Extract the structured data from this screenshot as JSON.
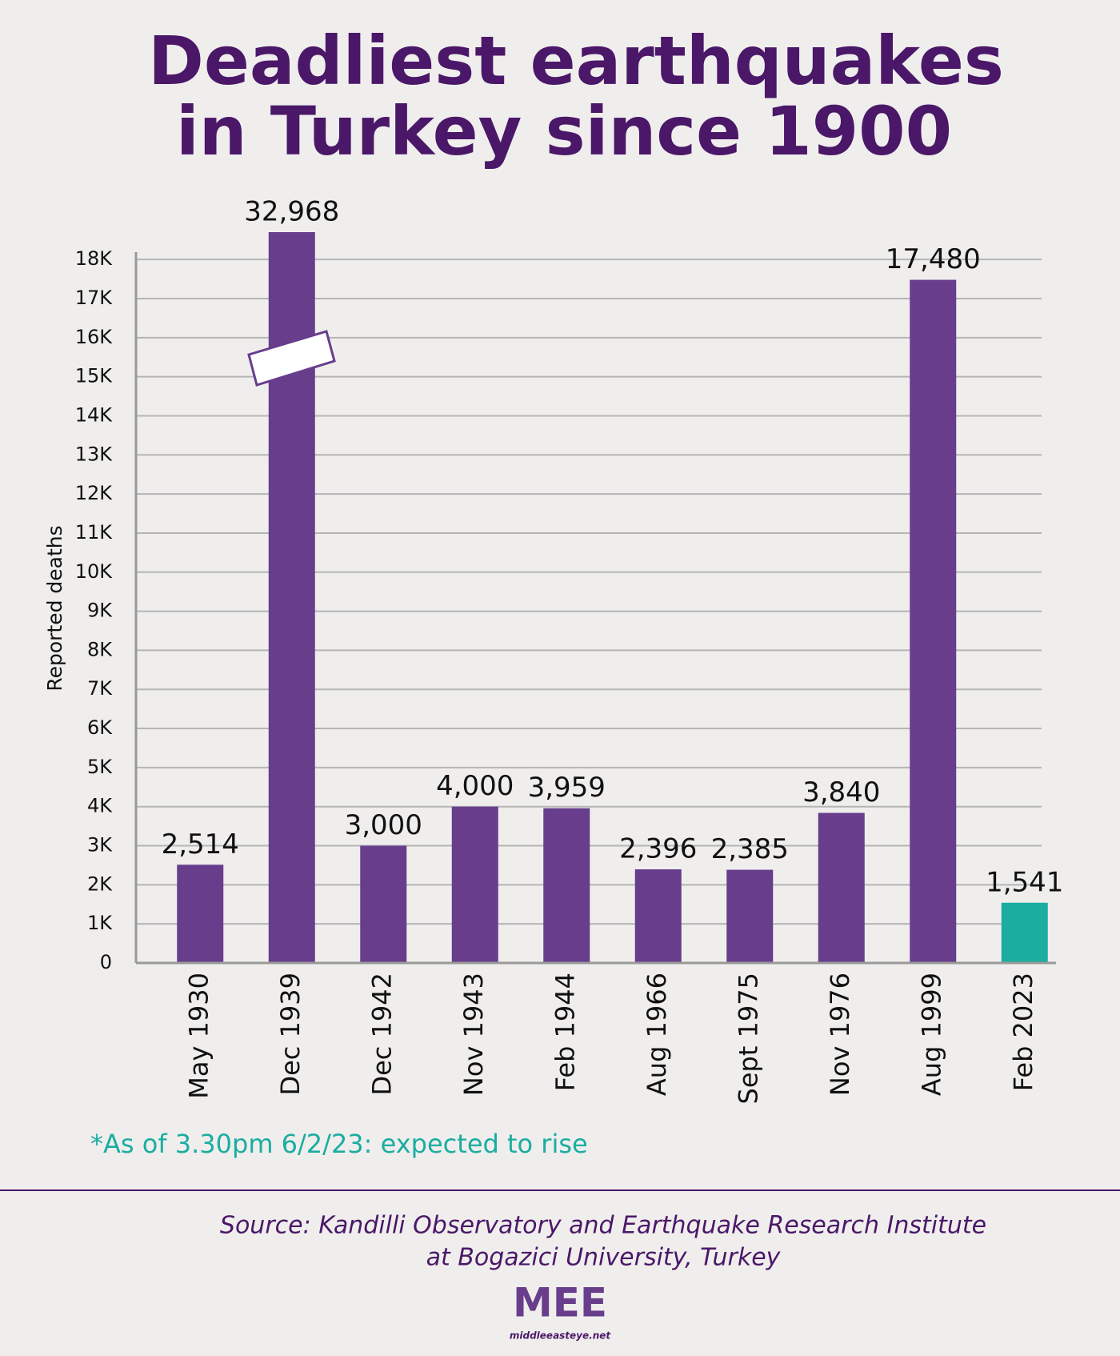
{
  "chart_data": {
    "type": "bar",
    "title": [
      "Deadliest earthquakes",
      "in Turkey since 1900"
    ],
    "y_label": "Reported deaths",
    "categories": [
      "May 1930",
      "Dec 1939",
      "Dec 1942",
      "Nov 1943",
      "Feb 1944",
      "Aug 1966",
      "Sept 1975",
      "Nov 1976",
      "Aug 1999",
      "Feb 2023"
    ],
    "values": [
      2514,
      32968,
      3000,
      4000,
      3959,
      2396,
      2385,
      3840,
      17480,
      1541
    ],
    "value_labels": [
      "2,514",
      "32,968",
      "3,000",
      "4,000",
      "3,959",
      "2,396",
      "2,385",
      "3,840",
      "17,480",
      "1,541"
    ],
    "colors": [
      "#673d8c",
      "#673d8c",
      "#673d8c",
      "#673d8c",
      "#673d8c",
      "#673d8c",
      "#673d8c",
      "#673d8c",
      "#673d8c",
      "#1aada0"
    ],
    "ylim": [
      0,
      18700
    ],
    "yticks": [
      0,
      {
        "value": 1000,
        "label": "1K"
      },
      {
        "value": 2000,
        "label": "2K"
      },
      {
        "value": 3000,
        "label": "3K"
      },
      {
        "value": 4000,
        "label": "4K"
      },
      {
        "value": 5000,
        "label": "5K"
      },
      {
        "value": 6000,
        "label": "6K"
      },
      {
        "value": 7000,
        "label": "7K"
      },
      {
        "value": 8000,
        "label": "8K"
      },
      {
        "value": 9000,
        "label": "9K"
      },
      {
        "value": 10000,
        "label": "10K"
      },
      {
        "value": 11000,
        "label": "11K"
      },
      {
        "value": 12000,
        "label": "12K"
      },
      {
        "value": 13000,
        "label": "13K"
      },
      {
        "value": 14000,
        "label": "14K"
      },
      {
        "value": 15000,
        "label": "15K"
      },
      {
        "value": 16000,
        "label": "16K"
      },
      {
        "value": 17000,
        "label": "17K"
      },
      {
        "value": 18000,
        "label": "18K"
      }
    ],
    "grid": true,
    "footnote": "*As of 3.30pm 6/2/23: expected to rise",
    "source": [
      "Source: Kandilli Observatory and Earthquake Research Institute",
      "at Bogazici University, Turkey"
    ],
    "logo": "MEE",
    "website": "middleeasteye.net"
  }
}
